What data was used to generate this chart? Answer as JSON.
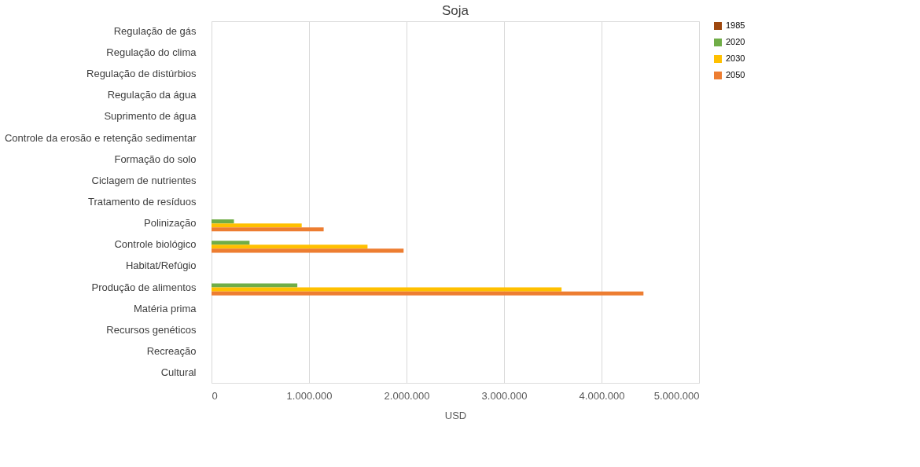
{
  "chart_data": {
    "type": "bar",
    "orientation": "horizontal",
    "title": "Soja",
    "xlabel": "USD",
    "categories": [
      "Regulação de gás",
      "Regulação do clima",
      "Regulação de distúrbios ",
      "Regulação da água",
      "Suprimento de água",
      "Controle da erosão e retenção sedimentar",
      "Formação do solo",
      "Ciclagem de nutrientes",
      "Tratamento de resíduos",
      "Polinização",
      "Controle biológico",
      "Habitat/Refúgio",
      "Produção de alimentos",
      "Matéria prima ",
      "Recursos genéticos",
      "Recreação",
      "Cultural"
    ],
    "series": [
      {
        "name": "1985",
        "color": "#9e480e",
        "values": [
          null,
          null,
          null,
          null,
          null,
          null,
          null,
          null,
          null,
          null,
          null,
          null,
          null,
          null,
          null,
          null,
          null
        ]
      },
      {
        "name": "2020",
        "color": "#70ad47",
        "values": [
          null,
          null,
          null,
          null,
          null,
          null,
          null,
          null,
          null,
          230000,
          390000,
          null,
          880000,
          null,
          null,
          null,
          null
        ]
      },
      {
        "name": "2030",
        "color": "#ffc000",
        "values": [
          null,
          null,
          null,
          null,
          null,
          null,
          null,
          null,
          null,
          925000,
          1600000,
          null,
          3590000,
          null,
          null,
          null,
          null
        ]
      },
      {
        "name": "2050",
        "color": "#ed7d31",
        "values": [
          null,
          null,
          null,
          null,
          null,
          null,
          null,
          null,
          null,
          1150000,
          1970000,
          null,
          4430000,
          null,
          null,
          null,
          null
        ]
      }
    ],
    "xlim": [
      0,
      5000000
    ],
    "xticks": [
      0,
      {
        "value": 1000000,
        "label": "1.000.000"
      },
      {
        "value": 2000000,
        "label": "2.000.000"
      },
      {
        "value": 3000000,
        "label": "3.000.000"
      },
      {
        "value": 4000000,
        "label": "4.000.000"
      },
      {
        "value": 5000000,
        "label": "5.000.000"
      }
    ],
    "grid": "x",
    "legend": "right"
  }
}
